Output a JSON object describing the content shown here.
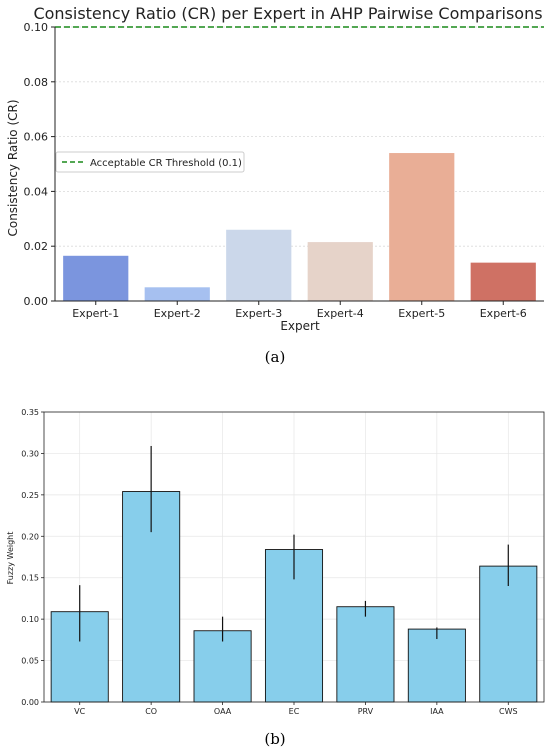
{
  "chart_data": [
    {
      "type": "bar",
      "title": "Consistency Ratio (CR) per Expert in AHP Pairwise Comparisons",
      "xlabel": "Expert",
      "ylabel": "Consistency Ratio (CR)",
      "categories": [
        "Expert-1",
        "Expert-2",
        "Expert-3",
        "Expert-4",
        "Expert-5",
        "Expert-6"
      ],
      "values": [
        0.0165,
        0.005,
        0.026,
        0.0215,
        0.054,
        0.014
      ],
      "colors": [
        "#7b95de",
        "#a6c0f0",
        "#cbd7ea",
        "#e6d3c9",
        "#e9ae96",
        "#cf7164"
      ],
      "ylim": [
        0,
        0.1
      ],
      "yticks": [
        "0.00",
        "0.02",
        "0.04",
        "0.06",
        "0.08",
        "0.10"
      ],
      "threshold": {
        "value": 0.1,
        "label": "Acceptable CR Threshold (0.1)",
        "color": "#1a8a1a"
      },
      "grid": "y",
      "legend": "center-left",
      "caption": "(a)"
    },
    {
      "type": "bar",
      "title": "",
      "xlabel": "",
      "ylabel": "Fuzzy Weight",
      "categories": [
        "VC",
        "CO",
        "OAA",
        "EC",
        "PRV",
        "IAA",
        "CWS"
      ],
      "values": [
        0.109,
        0.254,
        0.086,
        0.184,
        0.115,
        0.088,
        0.164
      ],
      "errors": [
        [
          0.073,
          0.141
        ],
        [
          0.205,
          0.309
        ],
        [
          0.073,
          0.103
        ],
        [
          0.148,
          0.202
        ],
        [
          0.103,
          0.122
        ],
        [
          0.076,
          0.09
        ],
        [
          0.14,
          0.19
        ]
      ],
      "bar_color": "#87ceeb",
      "ylim": [
        0,
        0.35
      ],
      "yticks": [
        "0.00",
        "0.05",
        "0.10",
        "0.15",
        "0.20",
        "0.25",
        "0.30",
        "0.35"
      ],
      "grid": "both",
      "caption": "(b)"
    }
  ]
}
